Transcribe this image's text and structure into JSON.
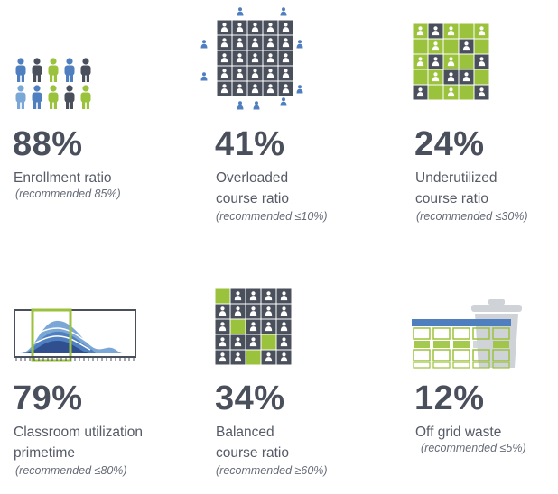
{
  "colors": {
    "dark": "#4a4f5c",
    "green": "#9bc23c",
    "blue": "#4f7fbf",
    "light_blue": "#7aa7d6",
    "grey": "#cfd3d8"
  },
  "metrics": [
    {
      "id": "enrollment",
      "value": "88%",
      "label_lines": [
        "Enrollment ratio"
      ],
      "recommended": "(recommended 85%)",
      "icon": "people-icon"
    },
    {
      "id": "overloaded",
      "value": "41%",
      "label_lines": [
        "Overloaded",
        "course ratio"
      ],
      "recommended": "(recommended ≤10%)",
      "icon": "overloaded-grid-icon"
    },
    {
      "id": "underutilized",
      "value": "24%",
      "label_lines": [
        "Underutilized",
        "course ratio"
      ],
      "recommended": "(recommended ≤30%)",
      "icon": "underutilized-grid-icon"
    },
    {
      "id": "classroom",
      "value": "79%",
      "label_lines": [
        "Classroom utilization",
        "primetime"
      ],
      "recommended": "(recommended ≤80%)",
      "icon": "utilization-chart-icon"
    },
    {
      "id": "balanced",
      "value": "34%",
      "label_lines": [
        "Balanced",
        "course ratio"
      ],
      "recommended": "(recommended ≥60%)",
      "icon": "balanced-grid-icon"
    },
    {
      "id": "offgrid",
      "value": "12%",
      "label_lines": [
        "Off grid waste"
      ],
      "recommended": "(recommended ≤5%)",
      "icon": "trash-schedule-icon"
    }
  ]
}
